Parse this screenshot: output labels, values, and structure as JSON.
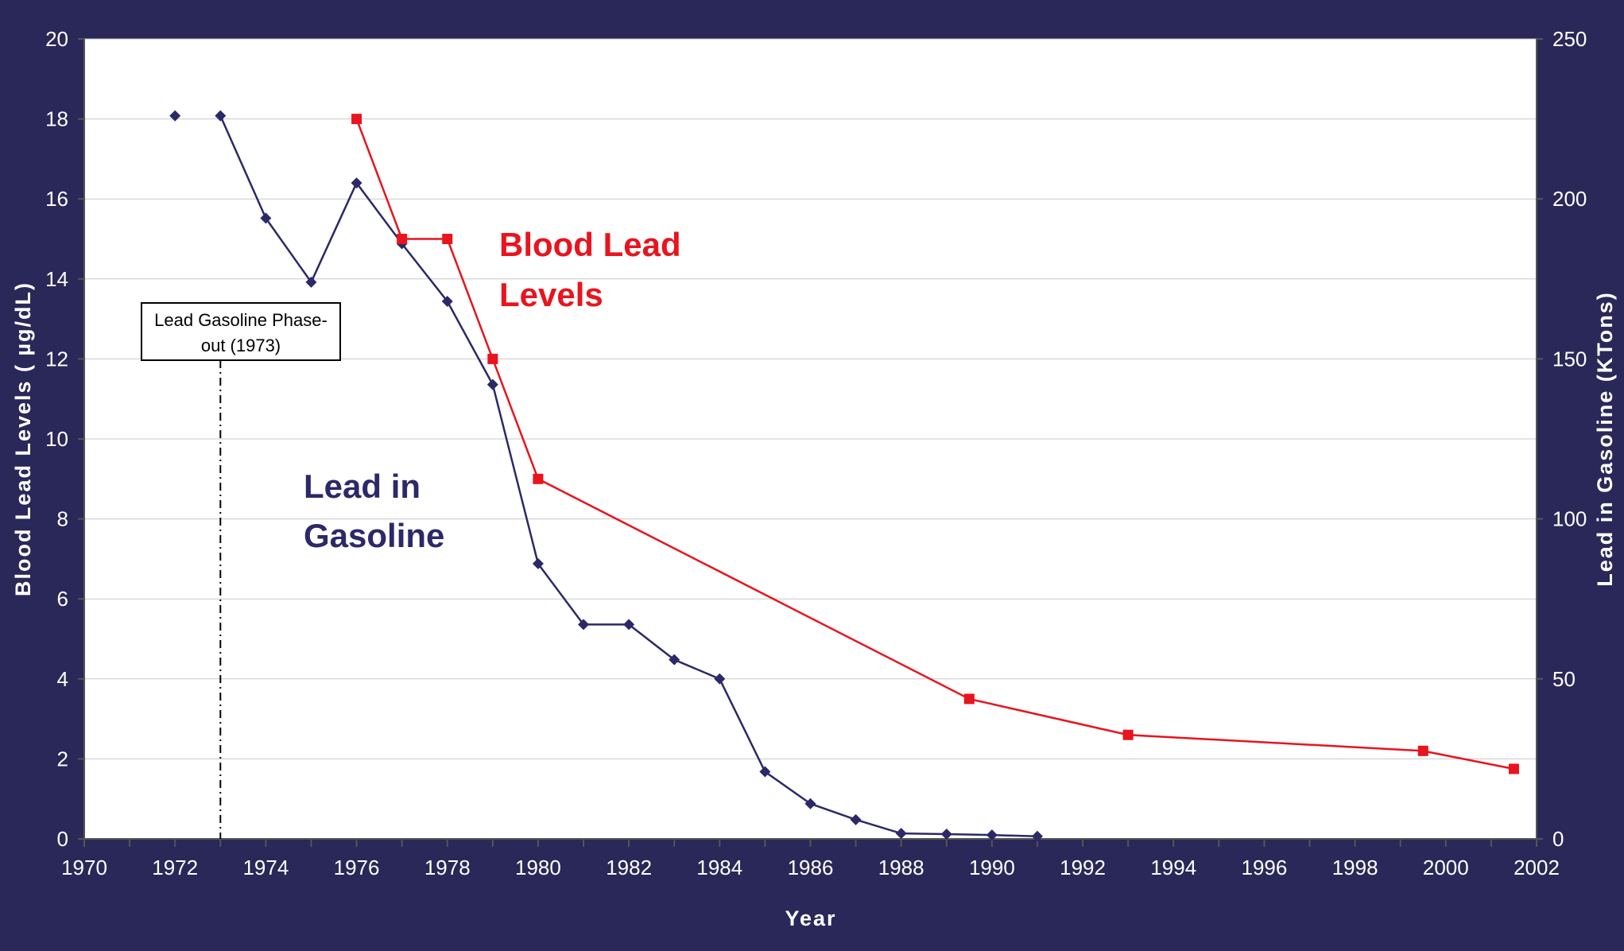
{
  "chart_data": {
    "type": "line",
    "title": "",
    "xlabel": "Year",
    "ylabel_left": "Blood Lead Levels ( µg/dL)",
    "ylabel_right": "Lead in Gasoline (KTons)",
    "xlim": [
      1970,
      2002
    ],
    "ylim_left": [
      0,
      20
    ],
    "ylim_right": [
      0,
      250
    ],
    "x_ticks": [
      "1970",
      "1972",
      "1974",
      "1976",
      "1978",
      "1980",
      "1982",
      "1984",
      "1986",
      "1988",
      "1990",
      "1992",
      "1994",
      "1996",
      "1998",
      "2000",
      "2002"
    ],
    "y_ticks_left": [
      "0",
      "2",
      "4",
      "6",
      "8",
      "10",
      "12",
      "14",
      "16",
      "18",
      "20"
    ],
    "y_ticks_right": [
      "0",
      "50",
      "100",
      "150",
      "200",
      "250"
    ],
    "grid": true,
    "series": [
      {
        "name": "Lead in Gasoline",
        "axis": "right",
        "color": "#2b2968",
        "marker": "diamond",
        "points": [
          [
            1972,
            226
          ],
          [
            1973,
            226
          ],
          [
            1974,
            194
          ],
          [
            1975,
            174
          ],
          [
            1976,
            205
          ],
          [
            1977,
            186
          ],
          [
            1978,
            168
          ],
          [
            1979,
            142
          ],
          [
            1980,
            86
          ],
          [
            1981,
            67
          ],
          [
            1982,
            67
          ],
          [
            1983,
            56
          ],
          [
            1984,
            50
          ],
          [
            1985,
            21
          ],
          [
            1986,
            11
          ],
          [
            1987,
            6
          ],
          [
            1988,
            1.7
          ],
          [
            1989,
            1.5
          ],
          [
            1990,
            1.2
          ],
          [
            1991,
            0.8
          ]
        ],
        "connect_from_index": 1
      },
      {
        "name": "Blood Lead Levels",
        "axis": "left",
        "color": "#e8141e",
        "marker": "square",
        "points": [
          [
            1976,
            18.0
          ],
          [
            1977,
            15.0
          ],
          [
            1978,
            15.0
          ],
          [
            1979,
            12.0
          ],
          [
            1980,
            9.0
          ],
          [
            1989.5,
            3.5
          ],
          [
            1993,
            2.6
          ],
          [
            1999.5,
            2.2
          ],
          [
            2001.5,
            1.75
          ]
        ],
        "connect_from_index": 0
      }
    ],
    "annotations": {
      "gas_label": [
        "Lead in",
        "Gasoline"
      ],
      "blood_label": [
        "Blood Lead",
        "Levels"
      ],
      "callout": {
        "lines": [
          "Lead Gasoline Phase-",
          "out (1973)"
        ],
        "year": 1973
      }
    }
  }
}
